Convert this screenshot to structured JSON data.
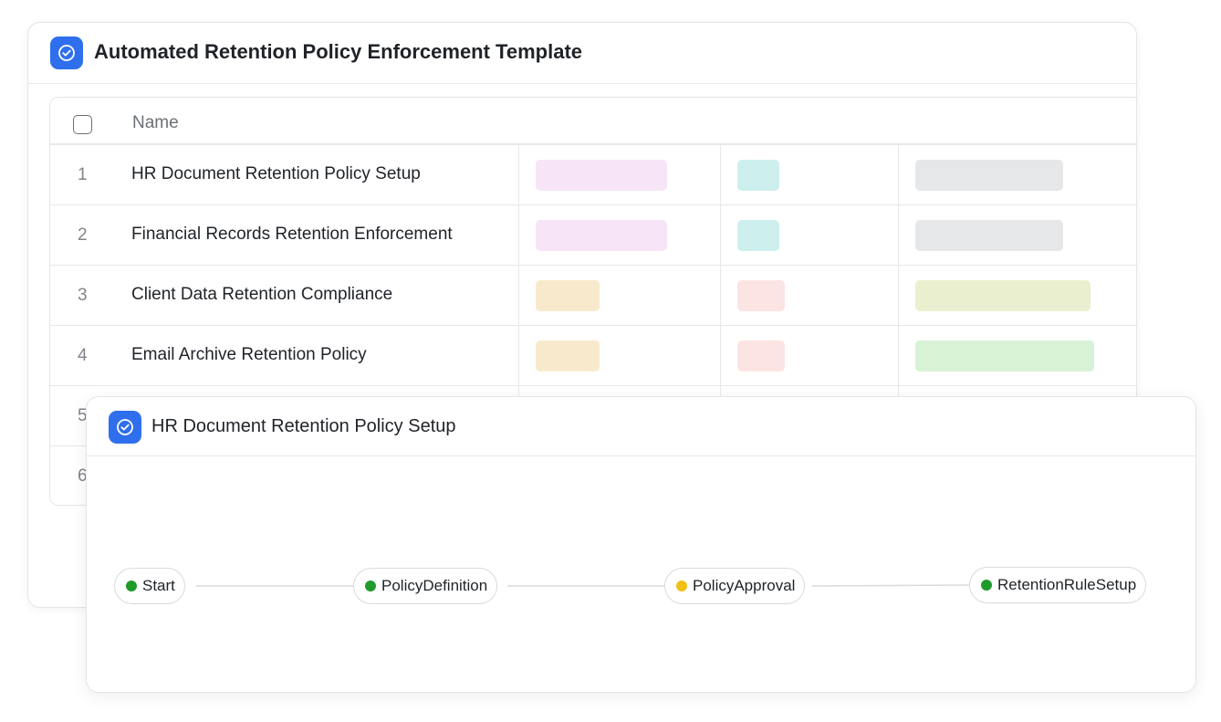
{
  "back_card": {
    "title": "Automated Retention Policy Enforcement Template",
    "table": {
      "header_name": "Name",
      "rows": [
        {
          "num": "1",
          "name": "HR Document Retention Policy Setup"
        },
        {
          "num": "2",
          "name": "Financial Records Retention Enforcement"
        },
        {
          "num": "3",
          "name": "Client Data Retention Compliance"
        },
        {
          "num": "4",
          "name": "Email Archive Retention Policy"
        },
        {
          "num": "5",
          "name": ""
        },
        {
          "num": "6",
          "name": ""
        }
      ]
    }
  },
  "front_card": {
    "title": "HR Document Retention Policy Setup",
    "flow": {
      "nodes": [
        {
          "label": "Start",
          "status_color": "#1e9b2b"
        },
        {
          "label": "PolicyDefinition",
          "status_color": "#1e9b2b"
        },
        {
          "label": "PolicyApproval",
          "status_color": "#f2c014"
        },
        {
          "label": "RetentionRuleSetup",
          "status_color": "#1e9b2b"
        }
      ]
    }
  },
  "colors": {
    "accent": "#2f6fed",
    "tag_pink": "#f7e5f7",
    "tag_teal": "#cdf0ee",
    "tag_gray": "#e6e7e9",
    "tag_peach": "#f8e9cd",
    "tag_rose": "#fce4e2",
    "tag_lime": "#eaf0cf",
    "tag_green": "#d7f2d5"
  }
}
